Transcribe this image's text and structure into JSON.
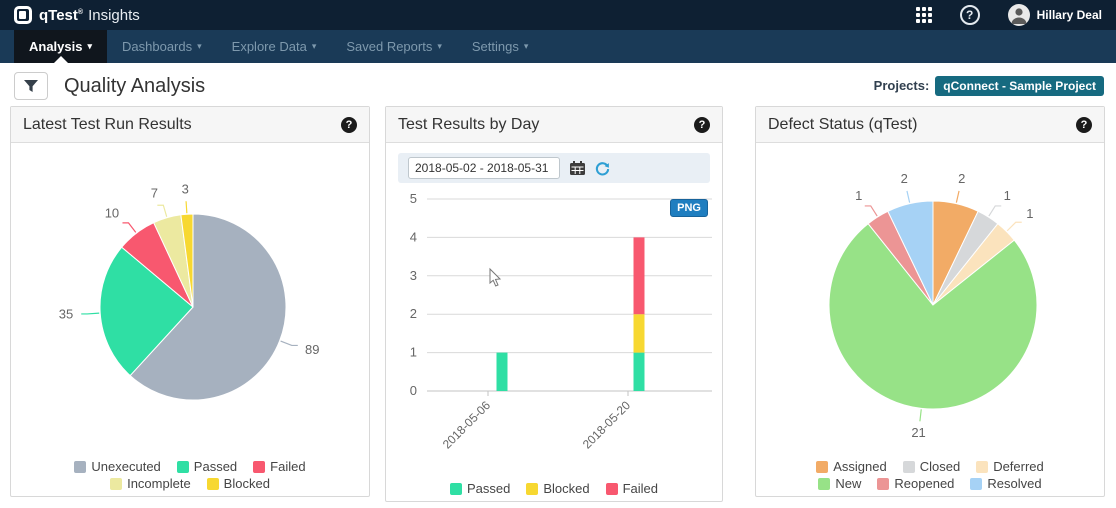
{
  "header": {
    "brand": "qTest",
    "brand_mark": "®",
    "product": "Insights",
    "user": "Hillary Deal"
  },
  "nav": {
    "items": [
      {
        "label": "Analysis",
        "active": true
      },
      {
        "label": "Dashboards",
        "active": false
      },
      {
        "label": "Explore Data",
        "active": false
      },
      {
        "label": "Saved Reports",
        "active": false
      },
      {
        "label": "Settings",
        "active": false
      }
    ]
  },
  "page": {
    "title": "Quality Analysis",
    "projects_label": "Projects:",
    "project": "qConnect - Sample Project"
  },
  "chart_data": [
    {
      "id": "latest",
      "type": "pie",
      "title": "Latest Test Run Results",
      "slices": [
        {
          "label": "Unexecuted",
          "value": 89,
          "color": "#a6b1bf"
        },
        {
          "label": "Passed",
          "value": 35,
          "color": "#2fdfa4"
        },
        {
          "label": "Failed",
          "value": 10,
          "color": "#f8586f"
        },
        {
          "label": "Incomplete",
          "value": 7,
          "color": "#ece9a0"
        },
        {
          "label": "Blocked",
          "value": 3,
          "color": "#f7d831"
        }
      ],
      "legend_rows": [
        [
          "Unexecuted",
          "Passed",
          "Failed"
        ],
        [
          "Incomplete",
          "Blocked"
        ]
      ]
    },
    {
      "id": "byday",
      "type": "bar",
      "stacked": true,
      "title": "Test Results by Day",
      "date_range": "2018-05-02 - 2018-05-31",
      "export_label": "PNG",
      "x_ticks": [
        "2018-05-06",
        "2018-05-20"
      ],
      "ylim": [
        0,
        5
      ],
      "y_ticks": [
        0,
        1,
        2,
        3,
        4,
        5
      ],
      "series": [
        {
          "name": "Passed",
          "color": "#2fdfa4",
          "values": [
            1,
            1
          ]
        },
        {
          "name": "Blocked",
          "color": "#f7d831",
          "values": [
            0,
            1
          ]
        },
        {
          "name": "Failed",
          "color": "#f8586f",
          "values": [
            0,
            2
          ]
        }
      ],
      "legend": [
        "Passed",
        "Blocked",
        "Failed"
      ]
    },
    {
      "id": "defect",
      "type": "pie",
      "title": "Defect Status (qTest)",
      "slices": [
        {
          "label": "Assigned",
          "value": 2,
          "color": "#f2ab66"
        },
        {
          "label": "Closed",
          "value": 1,
          "color": "#d6d8da"
        },
        {
          "label": "Deferred",
          "value": 1,
          "color": "#fbe3bd"
        },
        {
          "label": "New",
          "value": 21,
          "color": "#97e287"
        },
        {
          "label": "Reopened",
          "value": 1,
          "color": "#ec9595"
        },
        {
          "label": "Resolved",
          "value": 2,
          "color": "#a6d2f5"
        }
      ],
      "legend_rows": [
        [
          "Assigned",
          "Closed",
          "Deferred"
        ],
        [
          "New",
          "Reopened",
          "Resolved"
        ]
      ]
    }
  ]
}
